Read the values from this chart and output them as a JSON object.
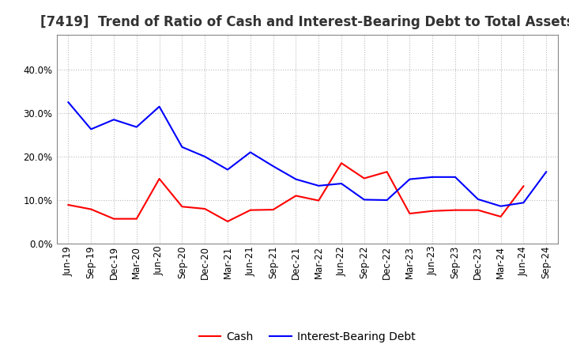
{
  "title": "[7419]  Trend of Ratio of Cash and Interest-Bearing Debt to Total Assets",
  "labels": [
    "Jun-19",
    "Sep-19",
    "Dec-19",
    "Mar-20",
    "Jun-20",
    "Sep-20",
    "Dec-20",
    "Mar-21",
    "Jun-21",
    "Sep-21",
    "Dec-21",
    "Mar-22",
    "Jun-22",
    "Sep-22",
    "Dec-22",
    "Mar-23",
    "Jun-23",
    "Sep-23",
    "Dec-23",
    "Mar-24",
    "Jun-24",
    "Sep-24"
  ],
  "cash": [
    0.089,
    0.079,
    0.057,
    0.057,
    0.149,
    0.085,
    0.08,
    0.051,
    0.077,
    0.078,
    0.11,
    0.099,
    0.185,
    0.15,
    0.165,
    0.069,
    0.075,
    0.077,
    0.077,
    0.062,
    0.132,
    null
  ],
  "ibd": [
    0.325,
    0.263,
    0.285,
    0.268,
    0.315,
    0.222,
    0.2,
    0.17,
    0.21,
    0.178,
    0.148,
    0.133,
    0.138,
    0.101,
    0.1,
    0.148,
    0.153,
    0.153,
    0.102,
    0.086,
    0.094,
    0.165
  ],
  "cash_color": "#ff0000",
  "ibd_color": "#0000ff",
  "ylim": [
    0.0,
    0.48
  ],
  "yticks": [
    0.0,
    0.1,
    0.2,
    0.3,
    0.4
  ],
  "legend_cash": "Cash",
  "legend_ibd": "Interest-Bearing Debt",
  "bg_color": "#ffffff",
  "plot_bg_color": "#ffffff",
  "grid_color": "#bbbbbb",
  "title_fontsize": 12,
  "tick_fontsize": 8.5,
  "legend_fontsize": 10
}
